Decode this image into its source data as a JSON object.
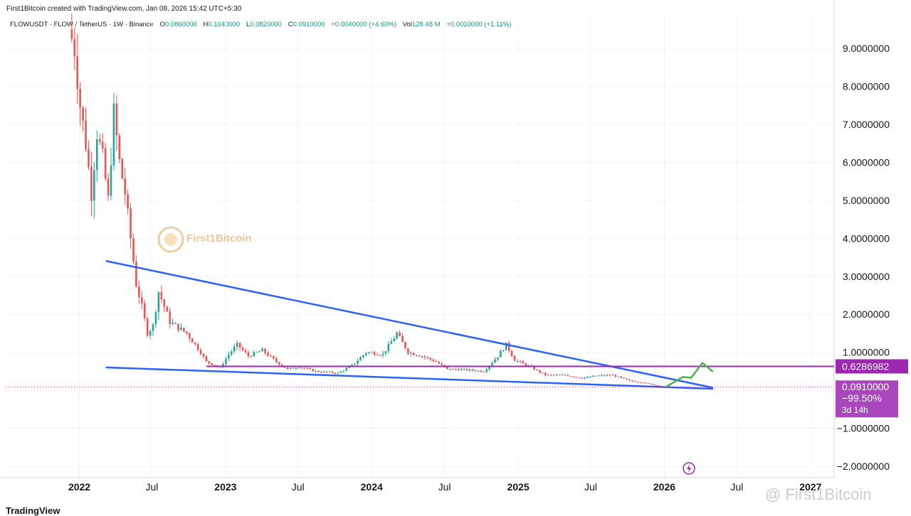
{
  "header": {
    "credit": "First1Bitcoin created with TradingView.com, Jan 08, 2026 15:42 UTC+5:30",
    "symbol": "FLOWUSDT · FLOW / TetherUS · 1W · Binance",
    "open_label": "O",
    "open": "0.0860000",
    "high_label": "H",
    "high": "0.1040000",
    "low_label": "L",
    "low": "0.0820000",
    "close_label": "C",
    "close": "0.0910000",
    "change": "+0.0040000 (+4.60%)",
    "vol_label": "Vol",
    "vol": "128.48 M",
    "vol_change": "+0.0010000 (+1.11%)"
  },
  "watermark": {
    "center": "First1Bitcoin",
    "bottom": "@ First1Bitcoin"
  },
  "footer": {
    "logo": "TradingView"
  },
  "colors": {
    "up": "#26a69a",
    "down": "#ef5350",
    "trendline": "#2962ff",
    "level": "#9c27b0",
    "arrow": "#4caf50"
  },
  "chart_data": {
    "type": "candlestick",
    "interval": "1W",
    "x_ticks": [
      "2022",
      "Jul",
      "2023",
      "Jul",
      "2024",
      "Jul",
      "2025",
      "Jul",
      "2026",
      "Jul",
      "2027"
    ],
    "y_ticks": [
      "9.0000000",
      "8.0000000",
      "7.0000000",
      "6.0000000",
      "5.0000000",
      "4.0000000",
      "3.0000000",
      "2.0000000",
      "1.0000000",
      "−1.0000000",
      "−2.0000000"
    ],
    "ylim": [
      -2.3,
      9.9
    ],
    "xlim": [
      "2021-07-01",
      "2027-03-01"
    ],
    "price_points": [
      [
        "2021-12-13",
        9.5
      ],
      [
        "2021-12-27",
        9.0
      ],
      [
        "2022-01-10",
        7.5
      ],
      [
        "2022-01-24",
        6.5
      ],
      [
        "2022-02-07",
        5.2
      ],
      [
        "2022-02-21",
        6.8
      ],
      [
        "2022-03-07",
        6.1
      ],
      [
        "2022-03-21",
        5.0
      ],
      [
        "2022-04-04",
        7.3
      ],
      [
        "2022-04-18",
        6.0
      ],
      [
        "2022-05-02",
        5.2
      ],
      [
        "2022-05-16",
        4.0
      ],
      [
        "2022-05-30",
        2.8
      ],
      [
        "2022-06-13",
        2.2
      ],
      [
        "2022-06-27",
        1.5
      ],
      [
        "2022-07-11",
        1.7
      ],
      [
        "2022-07-25",
        2.6
      ],
      [
        "2022-08-08",
        2.2
      ],
      [
        "2022-08-22",
        1.8
      ],
      [
        "2022-09-05",
        1.7
      ],
      [
        "2022-09-19",
        1.6
      ],
      [
        "2022-10-03",
        1.5
      ],
      [
        "2022-10-17",
        1.3
      ],
      [
        "2022-11-07",
        1.0
      ],
      [
        "2022-11-21",
        0.75
      ],
      [
        "2022-12-26",
        0.6
      ],
      [
        "2023-01-16",
        0.95
      ],
      [
        "2023-02-06",
        1.2
      ],
      [
        "2023-03-06",
        0.9
      ],
      [
        "2023-04-10",
        1.05
      ],
      [
        "2023-05-15",
        0.75
      ],
      [
        "2023-06-12",
        0.55
      ],
      [
        "2023-07-10",
        0.62
      ],
      [
        "2023-08-21",
        0.5
      ],
      [
        "2023-10-16",
        0.45
      ],
      [
        "2023-11-20",
        0.65
      ],
      [
        "2023-12-25",
        1.0
      ],
      [
        "2024-02-05",
        0.95
      ],
      [
        "2024-03-11",
        1.5
      ],
      [
        "2024-04-08",
        1.0
      ],
      [
        "2024-05-13",
        0.9
      ],
      [
        "2024-06-17",
        0.75
      ],
      [
        "2024-07-15",
        0.55
      ],
      [
        "2024-08-19",
        0.55
      ],
      [
        "2024-10-14",
        0.5
      ],
      [
        "2024-11-18",
        0.9
      ],
      [
        "2024-12-09",
        1.2
      ],
      [
        "2024-12-30",
        0.8
      ],
      [
        "2025-02-10",
        0.6
      ],
      [
        "2025-03-17",
        0.4
      ],
      [
        "2025-05-05",
        0.4
      ],
      [
        "2025-06-16",
        0.32
      ],
      [
        "2025-07-21",
        0.38
      ],
      [
        "2025-09-01",
        0.4
      ],
      [
        "2025-10-13",
        0.25
      ],
      [
        "2025-11-17",
        0.2
      ],
      [
        "2025-12-22",
        0.12
      ],
      [
        "2026-01-05",
        0.091
      ]
    ],
    "trendlines": [
      {
        "from": [
          "2022-03-10",
          3.4
        ],
        "to": [
          "2026-05-01",
          0.07
        ]
      },
      {
        "from": [
          "2022-03-10",
          0.6
        ],
        "to": [
          "2026-05-01",
          0.04
        ]
      }
    ],
    "horizontal_level": {
      "value": 0.6286982,
      "label": "0.6286982",
      "from": "2022-11-14"
    },
    "last_price": {
      "value": 0.091,
      "label": "0.0910000",
      "change_pct": "−99.50%",
      "countdown": "3d 14h"
    },
    "projection_arrow": [
      [
        "2026-01-05",
        0.09
      ],
      [
        "2026-02-16",
        0.35
      ],
      [
        "2026-03-09",
        0.33
      ],
      [
        "2026-04-06",
        0.72
      ],
      [
        "2026-05-01",
        0.5
      ]
    ]
  }
}
